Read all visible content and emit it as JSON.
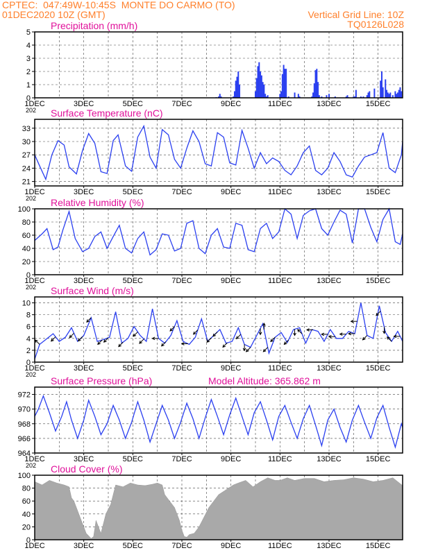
{
  "header": {
    "line1": "CPTEC:  047:49W-10:45S  MONTE DO CARMO (TO)",
    "line2_left": "01DEC2020 10Z (GMT)",
    "line2_right": "Vertical Grid Line: 10Z",
    "line3_right": "TQ0126L028"
  },
  "colors": {
    "header": "#ff7f2a",
    "title": "#e0109a",
    "series": "#2a3ff0",
    "cloud": "#a9a9a9"
  },
  "x_axis": {
    "labels": [
      "1DEC",
      "3DEC",
      "5DEC",
      "7DEC",
      "9DEC",
      "11DEC",
      "13DEC",
      "15DEC"
    ],
    "year_fragment": "202"
  },
  "chart_data": [
    {
      "type": "bar",
      "title": "Precipitation (mm/h)",
      "ylim": [
        0,
        5
      ],
      "yticks": [
        0,
        1,
        2,
        3,
        4,
        5
      ],
      "xlim": [
        0,
        15
      ],
      "grid": true,
      "x": [
        7.4,
        7.5,
        7.55,
        7.6,
        8.1,
        8.15,
        8.2,
        8.25,
        8.3,
        8.35,
        9.0,
        9.05,
        9.1,
        9.15,
        9.2,
        9.25,
        9.3,
        9.35,
        9.4,
        9.45,
        9.5,
        10.0,
        10.05,
        10.1,
        10.15,
        10.2,
        10.25,
        10.35,
        10.6,
        10.75,
        10.8,
        11.3,
        11.35,
        11.4,
        11.45,
        11.5,
        11.55,
        11.6,
        11.7,
        11.9,
        12.0,
        12.25,
        12.7,
        12.75,
        12.8,
        13.0,
        13.05,
        13.1,
        13.3,
        13.4,
        13.55,
        13.6,
        13.65,
        13.85,
        14.1,
        14.15,
        14.2,
        14.3,
        14.35,
        14.4,
        14.45,
        14.5,
        14.6,
        14.7,
        14.75,
        14.8,
        14.85,
        14.9,
        14.95
      ],
      "values": [
        0.05,
        0.1,
        0.3,
        0.1,
        0.1,
        0.5,
        1.3,
        1.6,
        2.0,
        1.0,
        0.5,
        1.5,
        2.4,
        2.7,
        2.0,
        1.7,
        1.2,
        1.0,
        0.3,
        0.1,
        0.2,
        0.3,
        0.5,
        1.8,
        2.5,
        2.2,
        2.2,
        0.1,
        0.4,
        0.3,
        0.1,
        0.1,
        0.4,
        1.1,
        2.1,
        2.2,
        1.2,
        0.2,
        0.1,
        0.2,
        0.3,
        0.1,
        0.1,
        0.2,
        0.05,
        0.1,
        0.1,
        0.6,
        0.1,
        0.1,
        0.2,
        0.4,
        0.5,
        0.7,
        1.3,
        2.0,
        0.8,
        1.4,
        0.6,
        0.4,
        0.3,
        0.4,
        0.2,
        0.5,
        0.3,
        0.4,
        0.6,
        0.8,
        0.5
      ]
    },
    {
      "type": "line",
      "title": "Surface Temperature (nC)",
      "ylim": [
        20,
        35
      ],
      "yticks": [
        21,
        24,
        27,
        30,
        33
      ],
      "xlim": [
        0,
        15
      ],
      "grid": true,
      "x": [
        0,
        0.2,
        0.45,
        0.7,
        0.95,
        1.2,
        1.4,
        1.7,
        1.95,
        2.2,
        2.45,
        2.7,
        2.95,
        3.2,
        3.4,
        3.7,
        3.95,
        4.2,
        4.45,
        4.7,
        4.95,
        5.2,
        5.45,
        5.7,
        5.95,
        6.2,
        6.45,
        6.7,
        6.95,
        7.2,
        7.45,
        7.7,
        7.95,
        8.2,
        8.45,
        8.7,
        8.95,
        9.2,
        9.45,
        9.7,
        9.95,
        10.2,
        10.45,
        10.7,
        10.95,
        11.2,
        11.45,
        11.7,
        11.95,
        12.2,
        12.45,
        12.7,
        12.95,
        13.2,
        13.45,
        13.7,
        13.95,
        14.2,
        14.45,
        14.7,
        14.95,
        15.0
      ],
      "values": [
        27,
        24.5,
        21.5,
        27,
        30.2,
        29.2,
        24.3,
        22.7,
        28,
        31.8,
        29.6,
        23.2,
        22.8,
        30.2,
        31.5,
        24.5,
        23.3,
        31,
        33.5,
        26.5,
        24,
        32.7,
        31.5,
        26,
        24,
        28.5,
        32.4,
        30,
        25,
        24.5,
        32,
        31,
        25.2,
        24.7,
        32.5,
        28.5,
        24,
        27.5,
        25,
        26.3,
        25.5,
        23.5,
        22.5,
        24.5,
        27.5,
        29,
        23.5,
        22.5,
        24,
        27.5,
        25.5,
        22.5,
        22,
        24.5,
        26.5,
        27,
        27.5,
        32,
        24,
        23,
        27,
        30
      ]
    },
    {
      "type": "line",
      "title": "Relative Humidity (%)",
      "ylim": [
        0,
        100
      ],
      "yticks": [
        0,
        20,
        40,
        60,
        80,
        100
      ],
      "xlim": [
        0,
        15
      ],
      "grid": true,
      "x": [
        0,
        0.3,
        0.5,
        0.75,
        0.95,
        1.15,
        1.4,
        1.65,
        1.95,
        2.2,
        2.45,
        2.7,
        2.95,
        3.2,
        3.45,
        3.7,
        3.95,
        4.2,
        4.45,
        4.7,
        4.95,
        5.2,
        5.45,
        5.7,
        5.95,
        6.2,
        6.45,
        6.7,
        6.95,
        7.2,
        7.45,
        7.7,
        7.95,
        8.2,
        8.45,
        8.7,
        8.95,
        9.2,
        9.45,
        9.7,
        9.95,
        10.2,
        10.45,
        10.7,
        10.95,
        11.2,
        11.45,
        11.7,
        11.95,
        12.2,
        12.45,
        12.7,
        12.95,
        13.2,
        13.45,
        13.7,
        13.95,
        14.2,
        14.45,
        14.7,
        14.9,
        15.0
      ],
      "values": [
        52,
        62,
        70,
        38,
        42,
        68,
        96,
        55,
        35,
        40,
        58,
        65,
        40,
        58,
        75,
        40,
        33,
        55,
        65,
        30,
        38,
        62,
        60,
        36,
        40,
        78,
        82,
        40,
        32,
        60,
        70,
        42,
        40,
        78,
        75,
        38,
        35,
        70,
        78,
        55,
        65,
        100,
        92,
        55,
        90,
        97,
        100,
        70,
        60,
        80,
        98,
        92,
        48,
        100,
        100,
        72,
        50,
        84,
        100,
        50,
        46,
        62
      ]
    },
    {
      "type": "line",
      "title": "Surface Wind (m/s)",
      "ylim": [
        0,
        11
      ],
      "yticks": [
        0,
        2,
        4,
        6,
        8,
        10
      ],
      "xlim": [
        0,
        15
      ],
      "grid": true,
      "x": [
        0,
        0.2,
        0.45,
        0.75,
        1.0,
        1.25,
        1.5,
        1.75,
        2.0,
        2.3,
        2.55,
        2.8,
        3.05,
        3.3,
        3.55,
        3.8,
        4.05,
        4.3,
        4.55,
        4.8,
        5.05,
        5.3,
        5.55,
        5.8,
        6.05,
        6.3,
        6.55,
        6.8,
        7.05,
        7.3,
        7.55,
        7.8,
        8.05,
        8.3,
        8.55,
        8.8,
        9.05,
        9.3,
        9.55,
        9.8,
        10.05,
        10.3,
        10.55,
        10.8,
        11.05,
        11.3,
        11.55,
        11.8,
        12.05,
        12.3,
        12.55,
        12.8,
        13.05,
        13.3,
        13.55,
        13.8,
        14.05,
        14.3,
        14.55,
        14.8,
        15.0
      ],
      "values": [
        0.5,
        3,
        3.8,
        4.8,
        3.5,
        4.2,
        5.8,
        3.5,
        4.5,
        7.5,
        3.5,
        3.8,
        4.2,
        8.5,
        3.2,
        4.0,
        6.0,
        4.5,
        3.5,
        9.0,
        4.0,
        3.2,
        4.5,
        7.0,
        3.5,
        3.0,
        4.2,
        7.3,
        3.5,
        4.5,
        5.5,
        3.2,
        3.5,
        5.8,
        3.0,
        2.5,
        4.5,
        6.5,
        1.5,
        4.2,
        5.0,
        3.3,
        5.5,
        5.8,
        3.2,
        5.5,
        5.2,
        3.5,
        5.5,
        4.0,
        4.0,
        5.2,
        4.8,
        10.0,
        4.5,
        4.0,
        9.5,
        5.0,
        3.5,
        5.2,
        3.5
      ],
      "vectors": [
        {
          "x": 0.2,
          "dir": "NW"
        },
        {
          "x": 0.85,
          "dir": "SW"
        },
        {
          "x": 1.6,
          "dir": "SW"
        },
        {
          "x": 1.95,
          "dir": "SW"
        },
        {
          "x": 2.3,
          "dir": "SW"
        },
        {
          "x": 2.75,
          "dir": "SW"
        },
        {
          "x": 3.0,
          "dir": "SW"
        },
        {
          "x": 3.6,
          "dir": "SW"
        },
        {
          "x": 4.2,
          "dir": "SW"
        },
        {
          "x": 4.45,
          "dir": "SW"
        },
        {
          "x": 5.05,
          "dir": "W"
        },
        {
          "x": 5.35,
          "dir": "SW"
        },
        {
          "x": 5.7,
          "dir": "SW"
        },
        {
          "x": 6.25,
          "dir": "W"
        },
        {
          "x": 6.65,
          "dir": "SW"
        },
        {
          "x": 7.2,
          "dir": "SW"
        },
        {
          "x": 7.45,
          "dir": "SW"
        },
        {
          "x": 7.85,
          "dir": "SW"
        },
        {
          "x": 8.4,
          "dir": "SW"
        },
        {
          "x": 8.55,
          "dir": "S"
        },
        {
          "x": 8.8,
          "dir": "SW"
        },
        {
          "x": 9.2,
          "dir": "S"
        },
        {
          "x": 9.35,
          "dir": "N"
        },
        {
          "x": 9.5,
          "dir": "SW"
        },
        {
          "x": 9.8,
          "dir": "SW"
        },
        {
          "x": 10.35,
          "dir": "SW"
        },
        {
          "x": 10.6,
          "dir": "S"
        },
        {
          "x": 10.9,
          "dir": "NW"
        },
        {
          "x": 11.35,
          "dir": "W"
        },
        {
          "x": 11.95,
          "dir": "W"
        },
        {
          "x": 12.25,
          "dir": "W"
        },
        {
          "x": 12.7,
          "dir": "W"
        },
        {
          "x": 13.05,
          "dir": "W"
        },
        {
          "x": 13.15,
          "dir": "W"
        },
        {
          "x": 13.55,
          "dir": "SW"
        },
        {
          "x": 14.1,
          "dir": "SW"
        },
        {
          "x": 14.25,
          "dir": "S"
        },
        {
          "x": 14.55,
          "dir": "NW"
        },
        {
          "x": 14.9,
          "dir": "W"
        }
      ]
    },
    {
      "type": "line",
      "title": "Surface Pressure (hPa)",
      "ylim": [
        964,
        973
      ],
      "yticks": [
        964,
        966,
        968,
        970,
        972
      ],
      "xlim": [
        0,
        15
      ],
      "grid": true,
      "annotation": "Model Altitude: 365.862 m",
      "x": [
        0,
        0.15,
        0.35,
        0.6,
        0.85,
        1.1,
        1.3,
        1.5,
        1.75,
        2.0,
        2.2,
        2.45,
        2.7,
        2.95,
        3.2,
        3.45,
        3.7,
        3.95,
        4.2,
        4.45,
        4.7,
        4.95,
        5.2,
        5.45,
        5.7,
        5.95,
        6.2,
        6.45,
        6.7,
        6.95,
        7.2,
        7.45,
        7.7,
        7.95,
        8.2,
        8.45,
        8.7,
        8.95,
        9.2,
        9.45,
        9.7,
        9.95,
        10.2,
        10.45,
        10.7,
        10.95,
        11.2,
        11.45,
        11.7,
        11.95,
        12.2,
        12.45,
        12.7,
        12.95,
        13.2,
        13.45,
        13.7,
        13.95,
        14.2,
        14.45,
        14.7,
        14.95,
        15.0
      ],
      "values": [
        969,
        970,
        971.8,
        969.5,
        967,
        969,
        971,
        968.5,
        966,
        968.5,
        971.2,
        969,
        966.5,
        968,
        970.5,
        968.5,
        966,
        968.2,
        971,
        968.5,
        965.5,
        968,
        970.5,
        968.5,
        966,
        968.2,
        970.8,
        968.7,
        966,
        968.8,
        971.3,
        969,
        966.5,
        969.2,
        971.5,
        969,
        966.5,
        969.5,
        971,
        968.5,
        965.8,
        969,
        970.5,
        968.2,
        966,
        968.7,
        970.5,
        967.8,
        965,
        968.5,
        970,
        967.5,
        965.5,
        968.5,
        970.5,
        968.2,
        966,
        968.8,
        970.5,
        967.5,
        964.8,
        968,
        967.5
      ]
    },
    {
      "type": "area",
      "title": "Cloud Cover (%)",
      "ylim": [
        0,
        100
      ],
      "yticks": [
        0,
        20,
        40,
        60,
        80,
        100
      ],
      "xlim": [
        0,
        15
      ],
      "grid": true,
      "x": [
        0,
        0.3,
        0.6,
        0.9,
        1.2,
        1.4,
        1.5,
        1.6,
        1.75,
        1.9,
        2.1,
        2.3,
        2.4,
        2.5,
        2.7,
        2.9,
        3.1,
        3.3,
        3.6,
        3.9,
        4.2,
        4.5,
        4.8,
        5.0,
        5.2,
        5.3,
        5.5,
        5.7,
        5.9,
        6.0,
        6.1,
        6.2,
        6.3,
        6.5,
        6.7,
        6.9,
        7.1,
        7.3,
        7.5,
        7.7,
        7.9,
        8.1,
        8.3,
        8.6,
        8.9,
        9.2,
        9.5,
        9.8,
        10.0,
        10.3,
        10.6,
        11.0,
        11.4,
        11.8,
        12.2,
        12.6,
        13.0,
        13.4,
        13.8,
        14.2,
        14.6,
        15.0
      ],
      "values": [
        90,
        85,
        92,
        88,
        85,
        82,
        65,
        60,
        45,
        30,
        10,
        2,
        5,
        30,
        10,
        40,
        55,
        85,
        82,
        88,
        85,
        84,
        86,
        88,
        85,
        70,
        60,
        50,
        30,
        15,
        5,
        4,
        8,
        10,
        20,
        35,
        50,
        60,
        70,
        75,
        80,
        85,
        88,
        92,
        82,
        90,
        96,
        92,
        92,
        96,
        92,
        95,
        95,
        90,
        92,
        93,
        96,
        94,
        90,
        92,
        96,
        84
      ]
    }
  ]
}
